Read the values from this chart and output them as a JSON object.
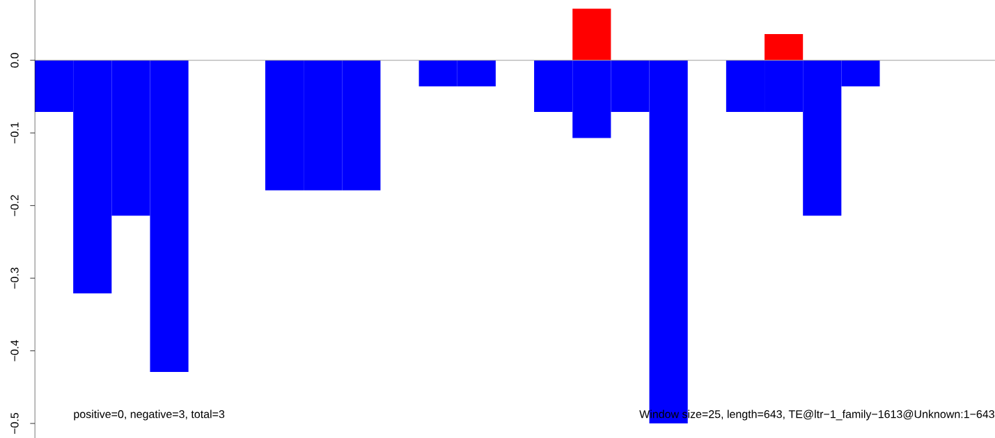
{
  "chart_data": {
    "type": "bar",
    "categories": [
      null,
      null,
      null,
      null,
      null,
      null,
      null,
      null,
      null,
      null,
      null,
      null,
      null,
      null,
      null,
      null,
      null,
      null,
      null,
      null,
      null,
      null,
      null,
      null,
      null
    ],
    "series": [
      {
        "color": "#0000ff",
        "values": [
          -0.071,
          -0.321,
          -0.214,
          -0.429,
          0,
          0,
          -0.179,
          -0.179,
          -0.179,
          0,
          -0.036,
          -0.036,
          0,
          -0.071,
          -0.107,
          -0.071,
          -0.5,
          0,
          -0.071,
          -0.071,
          -0.214,
          -0.036,
          0,
          0,
          0
        ]
      },
      {
        "color": "#ff0000",
        "values": [
          null,
          null,
          null,
          null,
          null,
          null,
          null,
          null,
          null,
          null,
          null,
          null,
          null,
          null,
          0.071,
          null,
          null,
          null,
          null,
          0.036,
          null,
          null,
          null,
          null,
          null
        ]
      }
    ],
    "ylim": [
      -0.52,
      0.083
    ],
    "yticks": [
      {
        "value": 0,
        "label": "0.0"
      },
      {
        "value": -0.1,
        "label": "−0.1"
      },
      {
        "value": -0.2,
        "label": "−0.2"
      },
      {
        "value": -0.3,
        "label": "−0.3"
      },
      {
        "value": -0.4,
        "label": "−0.4"
      },
      {
        "value": -0.5,
        "label": "−0.5"
      }
    ],
    "ref_lines": [
      {
        "axis": "y",
        "value": 0,
        "color": "#9e9e9e"
      }
    ],
    "annotations": [
      "positive=0, negative=3, total=3",
      "Window size=25, length=643, TE@ltr−1_family−1613@Unknown:1−643"
    ]
  }
}
